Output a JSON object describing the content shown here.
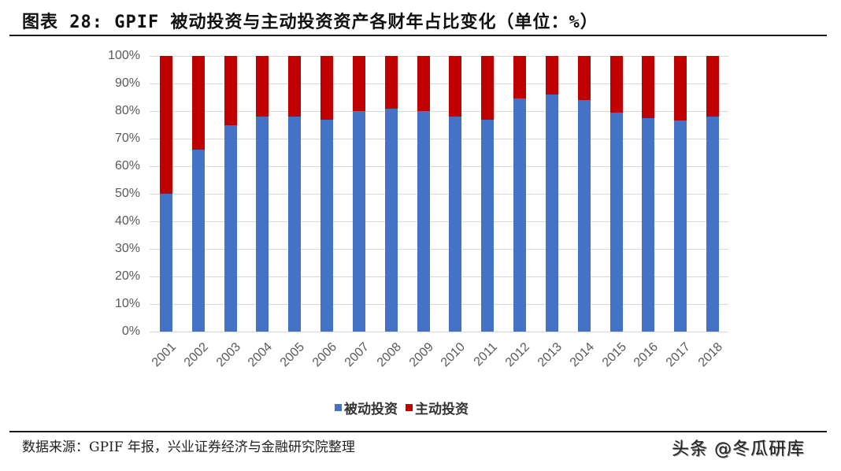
{
  "header": {
    "title": "图表 28: GPIF 被动投资与主动投资资产各财年占比变化（单位：%）"
  },
  "footer": {
    "source": "数据来源：GPIF 年报，兴业证券经济与金融研究院整理",
    "watermark": "头条 @冬瓜研库"
  },
  "legend": {
    "items": [
      {
        "label": "被动投资",
        "color": "#4472c4"
      },
      {
        "label": "主动投资",
        "color": "#c00000"
      }
    ]
  },
  "y_ticks": [
    "0%",
    "10%",
    "20%",
    "30%",
    "40%",
    "50%",
    "60%",
    "70%",
    "80%",
    "90%",
    "100%"
  ],
  "chart_data": {
    "type": "bar",
    "stacked": true,
    "percent_stacked": true,
    "title": "GPIF 被动投资与主动投资资产各财年占比变化（单位：%）",
    "xlabel": "",
    "ylabel": "",
    "ylim": [
      0,
      100
    ],
    "grid": true,
    "legend_position": "bottom",
    "categories": [
      "2001",
      "2002",
      "2003",
      "2004",
      "2005",
      "2006",
      "2007",
      "2008",
      "2009",
      "2010",
      "2011",
      "2012",
      "2013",
      "2014",
      "2015",
      "2016",
      "2017",
      "2018"
    ],
    "series": [
      {
        "name": "被动投资",
        "color": "#4472c4",
        "values": [
          50,
          66,
          75,
          78,
          78,
          77,
          80,
          81,
          80,
          78,
          77,
          84.5,
          86,
          84,
          79.5,
          77.5,
          76.5,
          78
        ]
      },
      {
        "name": "主动投资",
        "color": "#c00000",
        "values": [
          50,
          34,
          25,
          22,
          22,
          23,
          20,
          19,
          20,
          22,
          23,
          15.5,
          14,
          16,
          20.5,
          22.5,
          23.5,
          22
        ]
      }
    ]
  }
}
